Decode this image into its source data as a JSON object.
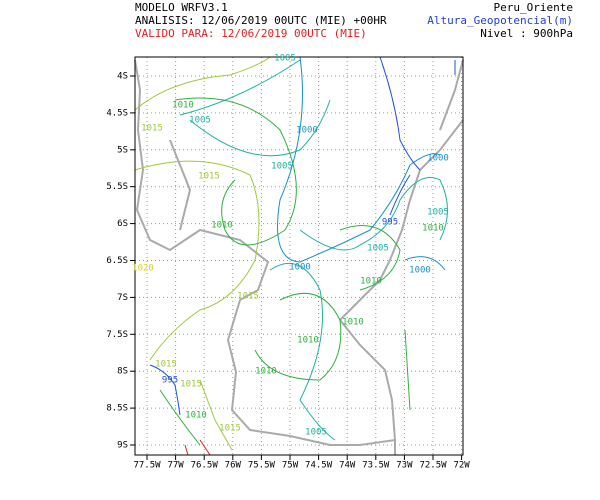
{
  "header": {
    "model": "MODELO WRFV3.1",
    "analysis": "ANALISIS: 12/06/2019 00UTC (MIE) +00HR",
    "valid": "VALIDO PARA: 12/06/2019 00UTC (MIE)",
    "region": "Peru_Oriente",
    "variable": "Altura_Geopotencial(m)",
    "level": "Nivel : 900hPa"
  },
  "map": {
    "lat_labels": [
      "4S",
      "4.5S",
      "5S",
      "5.5S",
      "6S",
      "6.5S",
      "7S",
      "7.5S",
      "8S",
      "8.5S",
      "9S"
    ],
    "lon_labels": [
      "77.5W",
      "77W",
      "76.5W",
      "76W",
      "75.5W",
      "75W",
      "74.5W",
      "74W",
      "73.5W",
      "73W",
      "72.5W",
      "72W"
    ],
    "contour_labels": [
      {
        "text": "1005",
        "color": "#20b0a0"
      },
      {
        "text": "1010",
        "color": "#30b040"
      },
      {
        "text": "1015",
        "color": "#a0c840"
      },
      {
        "text": "1005",
        "color": "#20b0a0"
      },
      {
        "text": "1000",
        "color": "#1890c8"
      },
      {
        "text": "1005",
        "color": "#20b0a0"
      },
      {
        "text": "1015",
        "color": "#a0c840"
      },
      {
        "text": "1010",
        "color": "#30b040"
      },
      {
        "text": "1000",
        "color": "#1890c8"
      },
      {
        "text": "995",
        "color": "#2050e0"
      },
      {
        "text": "1005",
        "color": "#20b0a0"
      },
      {
        "text": "1010",
        "color": "#30b040"
      },
      {
        "text": "1005",
        "color": "#20b0a0"
      },
      {
        "text": "1000",
        "color": "#1890c8"
      },
      {
        "text": "1000",
        "color": "#1890c8"
      },
      {
        "text": "1010",
        "color": "#30b040"
      },
      {
        "text": "1015",
        "color": "#a0c840"
      },
      {
        "text": "1010",
        "color": "#30b040"
      },
      {
        "text": "1010",
        "color": "#30b040"
      },
      {
        "text": "1010",
        "color": "#30b040"
      },
      {
        "text": "1015",
        "color": "#a0c840"
      },
      {
        "text": "995",
        "color": "#2050e0"
      },
      {
        "text": "1015",
        "color": "#a0c840"
      },
      {
        "text": "1010",
        "color": "#30b040"
      },
      {
        "text": "1015",
        "color": "#a0c840"
      },
      {
        "text": "1005",
        "color": "#20b0a0"
      },
      {
        "text": "1020",
        "color": "#d8d020"
      }
    ]
  }
}
